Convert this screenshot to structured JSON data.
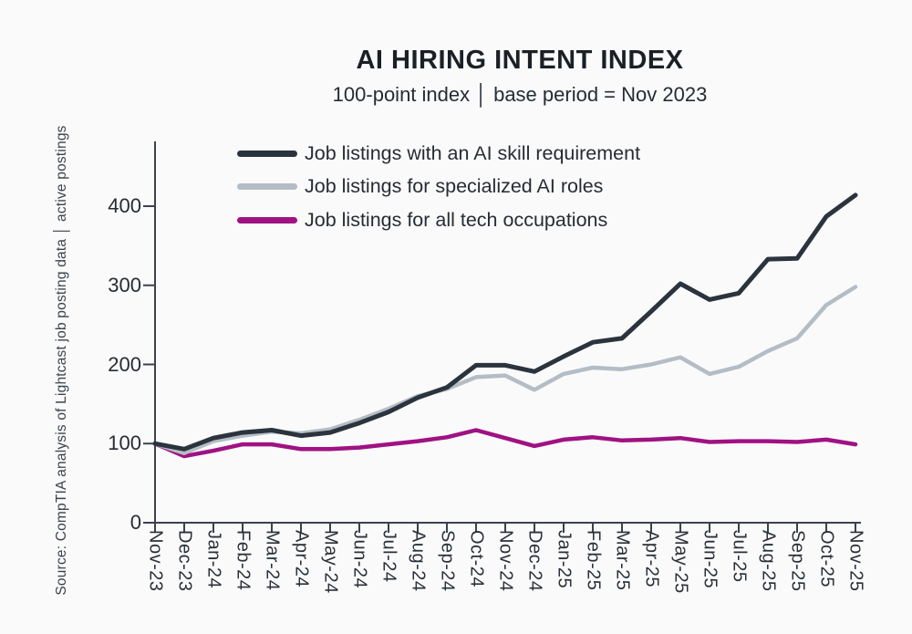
{
  "page": {
    "background": "#fafafa"
  },
  "header": {
    "title": "AI HIRING INTENT INDEX",
    "subtitle": "100-point index │ base period = Nov 2023"
  },
  "source_note": "Source: CompTIA analysis of Lightcast job posting data │ active postings",
  "colors": {
    "background": "#fafafa",
    "axis": "#3a424c",
    "title_text": "#1b2026",
    "body_text": "#272c33",
    "series_ai_skill": "#2b333d",
    "series_specialized": "#b4bdc6",
    "series_all_tech": "#a01183"
  },
  "chart_data": {
    "type": "line",
    "title": "AI HIRING INTENT INDEX",
    "subtitle": "100-point index | base period = Nov 2023",
    "x": [
      "Nov-23",
      "Dec-23",
      "Jan-24",
      "Feb-24",
      "Mar-24",
      "Apr-24",
      "May-24",
      "Jun-24",
      "Jul-24",
      "Aug-24",
      "Sep-24",
      "Oct-24",
      "Nov-24",
      "Dec-24",
      "Jan-25",
      "Feb-25",
      "Mar-25",
      "Apr-25",
      "May-25",
      "Jun-25",
      "Jul-25",
      "Aug-25",
      "Sep-25",
      "Oct-25",
      "Nov-25"
    ],
    "series": [
      {
        "name": "Job listings with an AI skill requirement",
        "color": "#2b333d",
        "values": [
          100,
          93,
          107,
          114,
          117,
          110,
          114,
          126,
          140,
          158,
          171,
          199,
          199,
          191,
          210,
          228,
          233,
          267,
          302,
          282,
          290,
          333,
          334,
          387,
          414
        ]
      },
      {
        "name": "Job listings for specialized AI roles",
        "color": "#b4bdc6",
        "values": [
          100,
          88,
          103,
          110,
          115,
          113,
          118,
          130,
          144,
          160,
          169,
          184,
          186,
          168,
          188,
          196,
          194,
          200,
          209,
          188,
          197,
          217,
          233,
          275,
          298
        ]
      },
      {
        "name": "Job listings for all tech occupations",
        "color": "#a01183",
        "values": [
          100,
          84,
          91,
          99,
          99,
          93,
          93,
          95,
          99,
          103,
          108,
          117,
          107,
          97,
          105,
          108,
          104,
          105,
          107,
          102,
          103,
          103,
          102,
          105,
          99
        ]
      }
    ],
    "yticks": [
      0,
      100,
      200,
      300,
      400
    ],
    "ylim": [
      0,
      480
    ],
    "grid": false,
    "legend_position": "top-left-inside",
    "base_period": "Nov 2023",
    "base_value": 100
  }
}
